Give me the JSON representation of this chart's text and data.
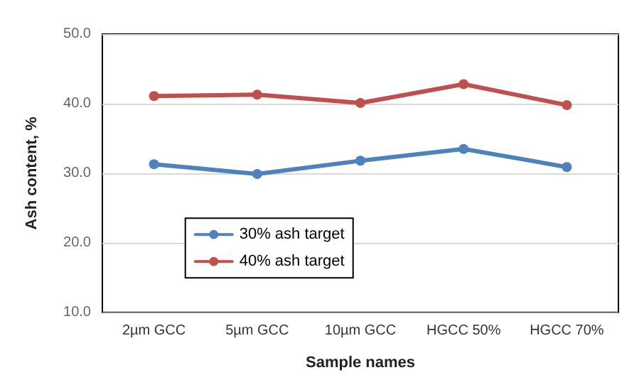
{
  "chart_data": {
    "type": "line",
    "xlabel": "Sample names",
    "ylabel": "Ash content, %",
    "categories": [
      "2µm GCC",
      "5µm GCC",
      "10µm GCC",
      "HGCC 50%",
      "HGCC 70%"
    ],
    "series": [
      {
        "name": "30% ash target",
        "color": "#4f81bd",
        "values": [
          31.3,
          29.9,
          31.8,
          33.5,
          30.9
        ]
      },
      {
        "name": "40% ash target",
        "color": "#c0504d",
        "values": [
          41.1,
          41.3,
          40.1,
          42.8,
          39.8
        ]
      }
    ],
    "ylim": [
      10,
      50
    ],
    "yticks": [
      {
        "value": 10,
        "label": "10.0"
      },
      {
        "value": 20,
        "label": "20.0"
      },
      {
        "value": 30,
        "label": "30.0"
      },
      {
        "value": 40,
        "label": "40.0"
      },
      {
        "value": 50,
        "label": "50.0"
      }
    ],
    "grid": "y",
    "legend": "center",
    "marker": "circle",
    "line_style": "solid"
  }
}
